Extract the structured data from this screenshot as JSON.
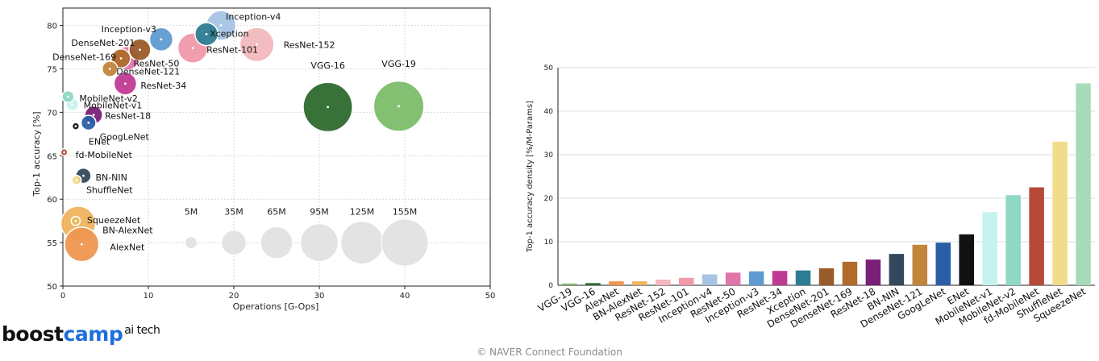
{
  "chart_data": [
    {
      "type": "scatter",
      "title": "",
      "xlabel": "Operations [G-Ops]",
      "ylabel": "Top-1 accuracy [%]",
      "xlim": [
        0,
        50
      ],
      "ylim": [
        50,
        82
      ],
      "xticks": [
        0,
        10,
        20,
        30,
        40,
        50
      ],
      "yticks": [
        50,
        55,
        60,
        65,
        70,
        75,
        80
      ],
      "grid": true,
      "points": [
        {
          "name": "Inception-v4",
          "x": 18.5,
          "y": 80.0,
          "params_m": 43,
          "color": "#a7c4e4",
          "label_dx": 6,
          "label_dy": -10,
          "anchor": "start"
        },
        {
          "name": "Inception-v3",
          "x": 11.5,
          "y": 78.4,
          "params_m": 24,
          "color": "#5f9bd0",
          "label_dx": -6,
          "label_dy": -12,
          "anchor": "end"
        },
        {
          "name": "Xception",
          "x": 16.8,
          "y": 79.0,
          "params_m": 23,
          "color": "#2e7c93",
          "label_dx": 4,
          "label_dy": 0,
          "anchor": "start"
        },
        {
          "name": "ResNet-101",
          "x": 15.2,
          "y": 77.4,
          "params_m": 44,
          "color": "#f09aaa",
          "label_dx": 17,
          "label_dy": 3,
          "anchor": "start"
        },
        {
          "name": "ResNet-152",
          "x": 22.7,
          "y": 77.8,
          "params_m": 60,
          "color": "#f2b8bd",
          "label_dx": 33,
          "label_dy": 1,
          "anchor": "start"
        },
        {
          "name": "ResNet-50",
          "x": 7.5,
          "y": 76.2,
          "params_m": 25,
          "color": "#e075aa",
          "label_dx": 8,
          "label_dy": 7,
          "anchor": "start"
        },
        {
          "name": "DenseNet-201",
          "x": 9.0,
          "y": 77.2,
          "params_m": 20,
          "color": "#9a5b2a",
          "label_dx": -6,
          "label_dy": -8,
          "anchor": "end"
        },
        {
          "name": "DenseNet-169",
          "x": 6.8,
          "y": 76.2,
          "params_m": 14,
          "color": "#b06b2c",
          "label_dx": -6,
          "label_dy": -1,
          "anchor": "end"
        },
        {
          "name": "DenseNet-121",
          "x": 5.5,
          "y": 75.0,
          "params_m": 8,
          "color": "#c2853c",
          "label_dx": 8,
          "label_dy": 4,
          "anchor": "start"
        },
        {
          "name": "ResNet-34",
          "x": 7.3,
          "y": 73.3,
          "params_m": 22,
          "color": "#c03a93",
          "label_dx": 19,
          "label_dy": 3,
          "anchor": "start"
        },
        {
          "name": "VGG-16",
          "x": 31.0,
          "y": 70.6,
          "params_m": 138,
          "color": "#2e6a2e",
          "label_dx": 0,
          "label_dy": -51,
          "anchor": "middle"
        },
        {
          "name": "VGG-19",
          "x": 39.3,
          "y": 70.7,
          "params_m": 144,
          "color": "#7cbd6a",
          "label_dx": 0,
          "label_dy": -52,
          "anchor": "middle"
        },
        {
          "name": "MobileNet-v2",
          "x": 0.6,
          "y": 71.8,
          "params_m": 3.5,
          "color": "#8fd8c4",
          "label_dx": 14,
          "label_dy": 3,
          "anchor": "start"
        },
        {
          "name": "MobileNet-v1",
          "x": 1.1,
          "y": 70.9,
          "params_m": 4.2,
          "color": "#c6f3ee",
          "label_dx": 14,
          "label_dy": 2,
          "anchor": "start"
        },
        {
          "name": "ResNet-18",
          "x": 3.6,
          "y": 69.7,
          "params_m": 11.7,
          "color": "#7a1f78",
          "label_dx": 14,
          "label_dy": 2,
          "anchor": "start"
        },
        {
          "name": "GoogLeNet",
          "x": 3.0,
          "y": 68.8,
          "params_m": 7,
          "color": "#2a5fa8",
          "label_dx": 14,
          "label_dy": 18,
          "anchor": "start"
        },
        {
          "name": "ENet",
          "x": 1.5,
          "y": 68.4,
          "params_m": 0.4,
          "color": "#111111",
          "label_dx": 16,
          "label_dy": 20,
          "anchor": "start"
        },
        {
          "name": "fd-MobileNet",
          "x": 0.15,
          "y": 65.4,
          "params_m": 0.3,
          "color": "#b54a3b",
          "label_dx": 14,
          "label_dy": 4,
          "anchor": "start"
        },
        {
          "name": "BN-NIN",
          "x": 2.4,
          "y": 62.7,
          "params_m": 7.6,
          "color": "#34485d",
          "label_dx": 15,
          "label_dy": 3,
          "anchor": "start"
        },
        {
          "name": "ShuffleNet",
          "x": 1.6,
          "y": 62.2,
          "params_m": 1.4,
          "color": "#f2dc8a",
          "label_dx": 12,
          "label_dy": 13,
          "anchor": "start"
        },
        {
          "name": "SqueezeNet",
          "x": 1.5,
          "y": 57.5,
          "params_m": 1.2,
          "color": "#e6b85a",
          "label_dx": 14,
          "label_dy": 0,
          "anchor": "start"
        },
        {
          "name": "BN-AlexNet",
          "x": 1.8,
          "y": 57.2,
          "params_m": 62,
          "color": "#efb35f",
          "label_dx": 30,
          "label_dy": 9,
          "anchor": "start"
        },
        {
          "name": "AlexNet",
          "x": 2.2,
          "y": 54.8,
          "params_m": 61,
          "color": "#ef9650",
          "label_dx": 35,
          "label_dy": 4,
          "anchor": "start"
        }
      ],
      "size_legend": [
        {
          "label": "5M",
          "x": 15,
          "y": 55,
          "params_m": 5
        },
        {
          "label": "35M",
          "x": 20,
          "y": 55,
          "params_m": 35
        },
        {
          "label": "65M",
          "x": 25,
          "y": 55,
          "params_m": 65
        },
        {
          "label": "95M",
          "x": 30,
          "y": 55,
          "params_m": 95
        },
        {
          "label": "125M",
          "x": 35,
          "y": 55,
          "params_m": 125
        },
        {
          "label": "155M",
          "x": 40,
          "y": 55,
          "params_m": 155
        }
      ]
    },
    {
      "type": "bar",
      "title": "",
      "xlabel": "",
      "ylabel": "Top-1 accuracy density [%/M-Params]",
      "ylim": [
        0,
        50
      ],
      "yticks": [
        0,
        10,
        20,
        30,
        40,
        50
      ],
      "grid": true,
      "categories": [
        "VGG-19",
        "VGG-16",
        "AlexNet",
        "BN-AlexNet",
        "ResNet-152",
        "ResNet-101",
        "Inception-v4",
        "ResNet-50",
        "Inception-v3",
        "ResNet-34",
        "Xception",
        "DenseNet-201",
        "DenseNet-169",
        "ResNet-18",
        "BN-NIN",
        "DenseNet-121",
        "GoogLeNet",
        "ENet",
        "MobileNet-v1",
        "MobileNet-v2",
        "fd-MobileNet",
        "ShuffleNet",
        "SqueezeNet"
      ],
      "values": [
        0.4,
        0.5,
        0.9,
        0.9,
        1.3,
        1.7,
        2.5,
        2.9,
        3.2,
        3.3,
        3.4,
        3.9,
        5.4,
        5.9,
        7.2,
        9.3,
        9.8,
        11.7,
        16.8,
        20.7,
        22.5,
        33.0,
        46.4
      ],
      "colors": [
        "#7cbd6a",
        "#2e6a2e",
        "#ef9650",
        "#efb35f",
        "#f2b8bd",
        "#f09aaa",
        "#a7c4e4",
        "#e075aa",
        "#5f9bd0",
        "#c03a93",
        "#2e7c93",
        "#9a5b2a",
        "#b06b2c",
        "#7a1f78",
        "#34485d",
        "#c2853c",
        "#2a5fa8",
        "#111111",
        "#c6f3ee",
        "#8fd8c4",
        "#b54a3b",
        "#f2dc8a",
        "#a8dcb8"
      ]
    }
  ],
  "branding": {
    "name_part1": "boost",
    "name_part2": "camp",
    "sub": "ai tech"
  },
  "footer": {
    "copyright": "©  NAVER Connect Foundation"
  }
}
